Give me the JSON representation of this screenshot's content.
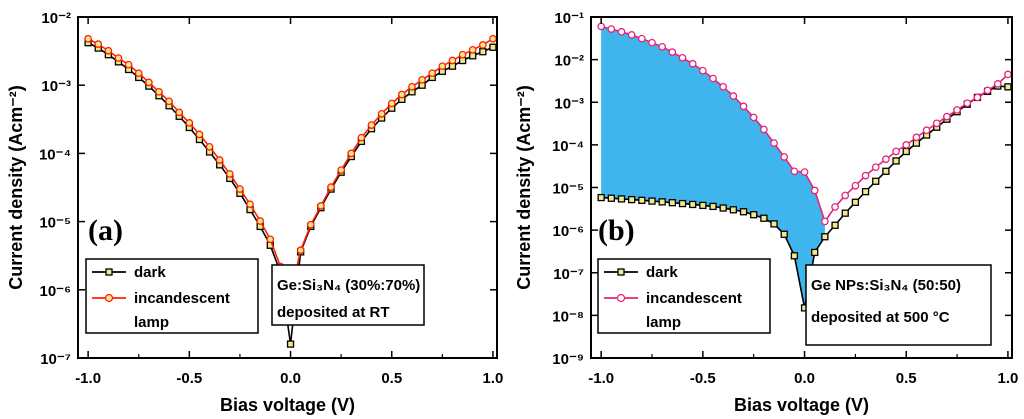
{
  "chart_data": [
    {
      "type": "line",
      "panel_label": "(a)",
      "xlabel": "Bias voltage (V)",
      "ylabel": "Current density (Acm⁻²)",
      "yscale": "log",
      "xlim": [
        -1.05,
        1.02
      ],
      "ylim_exponent": [
        -7,
        -2
      ],
      "xticks": [
        "-1.0",
        "-0.5",
        "0.0",
        "0.5",
        "1.0"
      ],
      "yticks": [
        "10⁻⁷",
        "10⁻⁶",
        "10⁻⁵",
        "10⁻⁴",
        "10⁻³",
        "10⁻²"
      ],
      "series": [
        {
          "name": "dark",
          "color": "#000000",
          "marker_fill": "#f3e98c",
          "marker": "square",
          "x": [
            -1.0,
            -0.95,
            -0.9,
            -0.85,
            -0.8,
            -0.75,
            -0.7,
            -0.65,
            -0.6,
            -0.55,
            -0.5,
            -0.45,
            -0.4,
            -0.35,
            -0.3,
            -0.25,
            -0.2,
            -0.15,
            -0.1,
            -0.05,
            0.0,
            0.05,
            0.1,
            0.15,
            0.2,
            0.25,
            0.3,
            0.35,
            0.4,
            0.45,
            0.5,
            0.55,
            0.6,
            0.65,
            0.7,
            0.75,
            0.8,
            0.85,
            0.9,
            0.95,
            1.0
          ],
          "y": [
            0.0042,
            0.0035,
            0.0028,
            0.0022,
            0.0017,
            0.0013,
            0.00097,
            0.0007,
            0.0005,
            0.00035,
            0.00024,
            0.00016,
            0.000105,
            6.8e-05,
            4.3e-05,
            2.6e-05,
            1.5e-05,
            8.5e-06,
            4.5e-06,
            1.8e-06,
            1.6e-07,
            3.6e-06,
            8.5e-06,
            1.6e-05,
            3e-05,
            5.3e-05,
            9e-05,
            0.00015,
            0.00023,
            0.00033,
            0.00046,
            0.00062,
            0.0008,
            0.001,
            0.0013,
            0.0016,
            0.0019,
            0.0023,
            0.0027,
            0.0031,
            0.0036
          ]
        },
        {
          "name": "incandescent lamp",
          "color": "#ff2200",
          "marker_fill": "#f3e98c",
          "marker": "circle",
          "x": [
            -1.0,
            -0.95,
            -0.9,
            -0.85,
            -0.8,
            -0.75,
            -0.7,
            -0.65,
            -0.6,
            -0.55,
            -0.5,
            -0.45,
            -0.4,
            -0.35,
            -0.3,
            -0.25,
            -0.2,
            -0.15,
            -0.1,
            -0.05,
            0.0,
            0.05,
            0.1,
            0.15,
            0.2,
            0.25,
            0.3,
            0.35,
            0.4,
            0.45,
            0.5,
            0.55,
            0.6,
            0.65,
            0.7,
            0.75,
            0.8,
            0.85,
            0.9,
            0.95,
            1.0
          ],
          "y": [
            0.0048,
            0.004,
            0.0032,
            0.0025,
            0.002,
            0.0015,
            0.0011,
            0.0008,
            0.00058,
            0.0004,
            0.00028,
            0.00019,
            0.000125,
            8e-05,
            5e-05,
            3e-05,
            1.8e-05,
            1.02e-05,
            5.5e-06,
            2.2e-06,
            8.5e-07,
            3.8e-06,
            9e-06,
            1.7e-05,
            3.2e-05,
            5.7e-05,
            0.0001,
            0.00017,
            0.00026,
            0.00038,
            0.00054,
            0.00073,
            0.00095,
            0.0012,
            0.0015,
            0.0019,
            0.0023,
            0.0028,
            0.0033,
            0.0039,
            0.0048
          ]
        }
      ],
      "annotation": [
        "Ge:Si₃N₄ (30%:70%)",
        "deposited at RT"
      ],
      "legend_placement": "bottom-left"
    },
    {
      "type": "line",
      "panel_label": "(b)",
      "xlabel": "Bias voltage (V)",
      "ylabel": "Current density (Acm⁻²)",
      "yscale": "log",
      "xlim": [
        -1.05,
        1.02
      ],
      "ylim_exponent": [
        -9,
        -1
      ],
      "xticks": [
        "-1.0",
        "-0.5",
        "0.0",
        "0.5",
        "1.0"
      ],
      "yticks": [
        "10⁻⁹",
        "10⁻⁸",
        "10⁻⁷",
        "10⁻⁶",
        "10⁻⁵",
        "10⁻⁴",
        "10⁻³",
        "10⁻²",
        "10⁻¹"
      ],
      "fill_between": {
        "color": "#3fb5ee",
        "x_range": [
          -1.0,
          0.1
        ]
      },
      "series": [
        {
          "name": "dark",
          "color": "#000000",
          "marker_fill": "#f3e98c",
          "marker": "square",
          "x": [
            -1.0,
            -0.95,
            -0.9,
            -0.85,
            -0.8,
            -0.75,
            -0.7,
            -0.65,
            -0.6,
            -0.55,
            -0.5,
            -0.45,
            -0.4,
            -0.35,
            -0.3,
            -0.25,
            -0.2,
            -0.15,
            -0.1,
            -0.05,
            0.0,
            0.05,
            0.1,
            0.15,
            0.2,
            0.25,
            0.3,
            0.35,
            0.4,
            0.45,
            0.5,
            0.55,
            0.6,
            0.65,
            0.7,
            0.75,
            0.8,
            0.85,
            0.9,
            0.95,
            1.0
          ],
          "y": [
            5.8e-06,
            5.6e-06,
            5.4e-06,
            5.2e-06,
            5e-06,
            4.8e-06,
            4.6e-06,
            4.4e-06,
            4.2e-06,
            4e-06,
            3.8e-06,
            3.6e-06,
            3.3e-06,
            3e-06,
            2.7e-06,
            2.3e-06,
            1.9e-06,
            1.4e-06,
            8e-07,
            2.5e-07,
            1.5e-08,
            3e-07,
            7e-07,
            1.3e-06,
            2.5e-06,
            4.5e-06,
            8e-06,
            1.4e-05,
            2.4e-05,
            4.2e-05,
            7e-05,
            0.00011,
            0.00017,
            0.00026,
            0.0004,
            0.0006,
            0.0009,
            0.0013,
            0.0018,
            0.0024,
            0.0023
          ]
        },
        {
          "name": "incandescent lamp",
          "color": "#e6247a",
          "marker_fill": "#ffffff",
          "marker": "circle",
          "x": [
            -1.0,
            -0.95,
            -0.9,
            -0.85,
            -0.8,
            -0.75,
            -0.7,
            -0.65,
            -0.6,
            -0.55,
            -0.5,
            -0.45,
            -0.4,
            -0.35,
            -0.3,
            -0.25,
            -0.2,
            -0.15,
            -0.1,
            -0.05,
            0.0,
            0.05,
            0.1,
            0.15,
            0.2,
            0.25,
            0.3,
            0.35,
            0.4,
            0.45,
            0.5,
            0.55,
            0.6,
            0.65,
            0.7,
            0.75,
            0.8,
            0.85,
            0.9,
            0.95,
            1.0
          ],
          "y": [
            0.06,
            0.052,
            0.045,
            0.038,
            0.031,
            0.025,
            0.02,
            0.015,
            0.011,
            0.008,
            0.0055,
            0.0036,
            0.0023,
            0.0014,
            0.0008,
            0.00044,
            0.00023,
            0.00011,
            5.2e-05,
            2.4e-05,
            2.3e-05,
            8.5e-06,
            1.6e-06,
            3.5e-06,
            6.5e-06,
            1.1e-05,
            1.9e-05,
            3e-05,
            4.6e-05,
            7e-05,
            0.0001,
            0.00015,
            0.00022,
            0.00032,
            0.00046,
            0.00066,
            0.00095,
            0.0013,
            0.0019,
            0.0027,
            0.0045
          ]
        }
      ],
      "annotation": [
        "Ge NPs:Si₃N₄ (50:50)",
        "deposited at 500 °C"
      ],
      "legend_placement": "bottom-left"
    }
  ]
}
